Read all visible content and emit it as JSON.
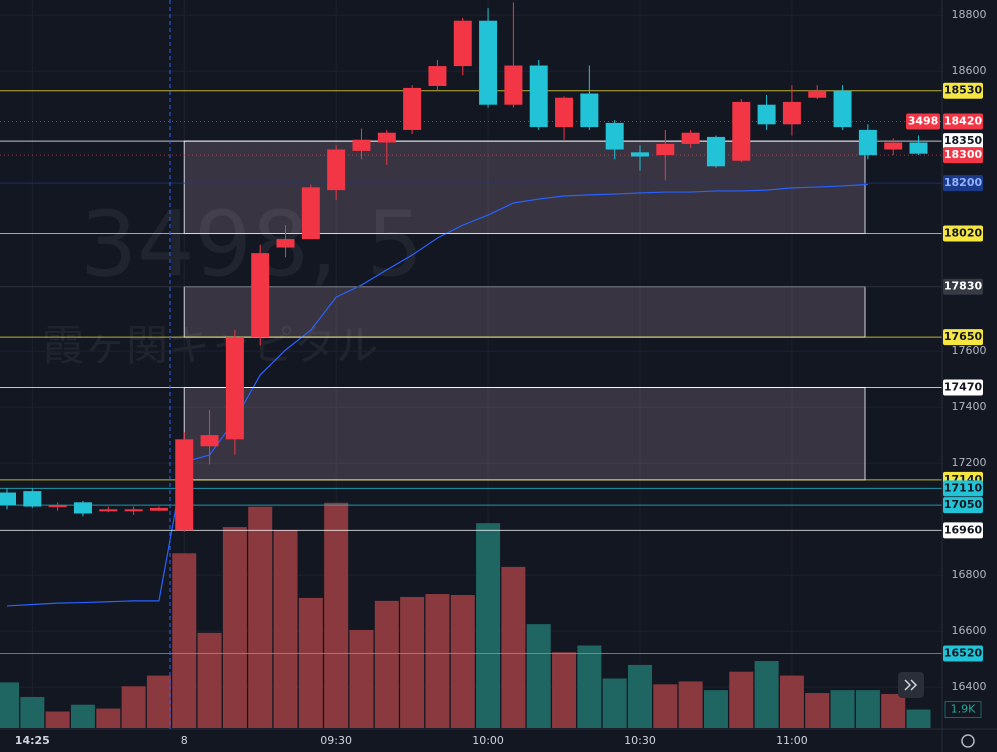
{
  "chart_data": {
    "type": "candlestick",
    "symbol_watermark": "3498, 5",
    "name_watermark": "霞ヶ関キャピタル",
    "symbol_tag": "3498",
    "categories": [
      null,
      "14:25",
      null,
      null,
      null,
      null,
      null,
      "8",
      null,
      null,
      null,
      null,
      null,
      "09:30",
      null,
      null,
      null,
      null,
      null,
      "10:00",
      null,
      null,
      null,
      null,
      null,
      "10:30",
      null,
      null,
      null,
      null,
      null,
      "11:00",
      null,
      null,
      null,
      null,
      null
    ],
    "open": [
      17095,
      17100,
      17045,
      17060,
      17030,
      17030,
      17030,
      16960,
      17260,
      17285,
      17650,
      17970,
      18000,
      18175,
      18315,
      18345,
      18390,
      18547,
      18618,
      18780,
      18480,
      18620,
      18400,
      18520,
      18415,
      18310,
      18300,
      18340,
      18365,
      18280,
      18480,
      18410,
      18505,
      18530,
      18390,
      18320,
      18345
    ],
    "high": [
      17110,
      17110,
      17060,
      17065,
      17045,
      17045,
      17045,
      17310,
      17390,
      17675,
      17980,
      18050,
      18195,
      18335,
      18395,
      18390,
      18550,
      18640,
      18790,
      18825,
      18845,
      18640,
      18510,
      18620,
      18425,
      18335,
      18390,
      18390,
      18370,
      18500,
      18515,
      18550,
      18550,
      18550,
      18410,
      18360,
      18370
    ],
    "low": [
      17035,
      17040,
      17030,
      17010,
      17025,
      17015,
      17030,
      16955,
      17195,
      17230,
      17620,
      17935,
      18000,
      18140,
      18285,
      18265,
      18375,
      18530,
      18585,
      18470,
      18470,
      18390,
      18355,
      18390,
      18285,
      18245,
      18210,
      18325,
      18255,
      18275,
      18390,
      18370,
      18500,
      18390,
      18285,
      18300,
      18300
    ],
    "close": [
      17050,
      17045,
      17050,
      17020,
      17035,
      17035,
      17040,
      17285,
      17300,
      17650,
      17950,
      18000,
      18185,
      18320,
      18355,
      18380,
      18540,
      18618,
      18780,
      18480,
      18620,
      18400,
      18505,
      18400,
      18320,
      18295,
      18340,
      18380,
      18260,
      18490,
      18410,
      18490,
      18530,
      18400,
      18300,
      18345,
      18305
    ],
    "up_color": "#f23645",
    "down_color": "#22c3d6",
    "vwap": {
      "color": "#2962ff",
      "values": [
        16690,
        16695,
        16700,
        16702,
        16705,
        16708,
        16708,
        17204,
        17229,
        17354,
        17515,
        17604,
        17675,
        17793,
        17836,
        17890,
        17943,
        18004,
        18050,
        18086,
        18129,
        18143,
        18154,
        18158,
        18161,
        18165,
        18168,
        18168,
        18172,
        18172,
        18175,
        18183,
        18186,
        18190,
        18195,
        null,
        null
      ]
    },
    "volume": {
      "values": [
        4700,
        3200,
        1700,
        2400,
        2000,
        4300,
        5400,
        18000,
        9800,
        20700,
        22800,
        20400,
        13400,
        23200,
        10100,
        13100,
        13500,
        13800,
        13700,
        21100,
        16600,
        10700,
        7800,
        8500,
        5100,
        6500,
        4500,
        4800,
        3900,
        5800,
        6900,
        5400,
        3600,
        3900,
        3900,
        3500,
        1900
      ],
      "up_color": "#8a3a3e",
      "down_color": "#1f6663",
      "ylim": [
        0,
        75000
      ],
      "last": {
        "value": 1900,
        "label": "1.9K"
      }
    },
    "zones": [
      {
        "top": 18350,
        "bottom": 18020
      },
      {
        "top": 17830,
        "bottom": 17650
      },
      {
        "top": 17470,
        "bottom": 17140
      }
    ],
    "levels": [
      {
        "value": 18530,
        "color": "#f5e642",
        "text_color": "#131722"
      },
      {
        "value": 18420,
        "color": "#f23645",
        "text_color": "#ffffff"
      },
      {
        "value": 18350,
        "color": "#ffffff",
        "text_color": "#131722"
      },
      {
        "value": 18300,
        "color": "#f23645",
        "text_color": "#ffffff"
      },
      {
        "value": 18200,
        "color": "#1c3a8a",
        "text_color": "#8fb3ff"
      },
      {
        "value": 18020,
        "color": "#f5e642",
        "text_color": "#131722"
      },
      {
        "value": 17830,
        "color": "#363a45",
        "text_color": "#ffffff"
      },
      {
        "value": 17650,
        "color": "#f5e642",
        "text_color": "#131722"
      },
      {
        "value": 17470,
        "color": "#ffffff",
        "text_color": "#131722"
      },
      {
        "value": 17140,
        "color": "#f5e642",
        "text_color": "#131722"
      },
      {
        "value": 17110,
        "color": "#22c3d6",
        "text_color": "#131722"
      },
      {
        "value": 17050,
        "color": "#22c3d6",
        "text_color": "#131722"
      },
      {
        "value": 16960,
        "color": "#ffffff",
        "text_color": "#131722"
      },
      {
        "value": 16520,
        "color": "#22c3d6",
        "text_color": "#131722"
      }
    ],
    "ylim": [
      16254,
      18854
    ],
    "yticks": [
      16400,
      16600,
      16800,
      17200,
      17400,
      17600,
      18600,
      18800
    ],
    "grid": true
  }
}
